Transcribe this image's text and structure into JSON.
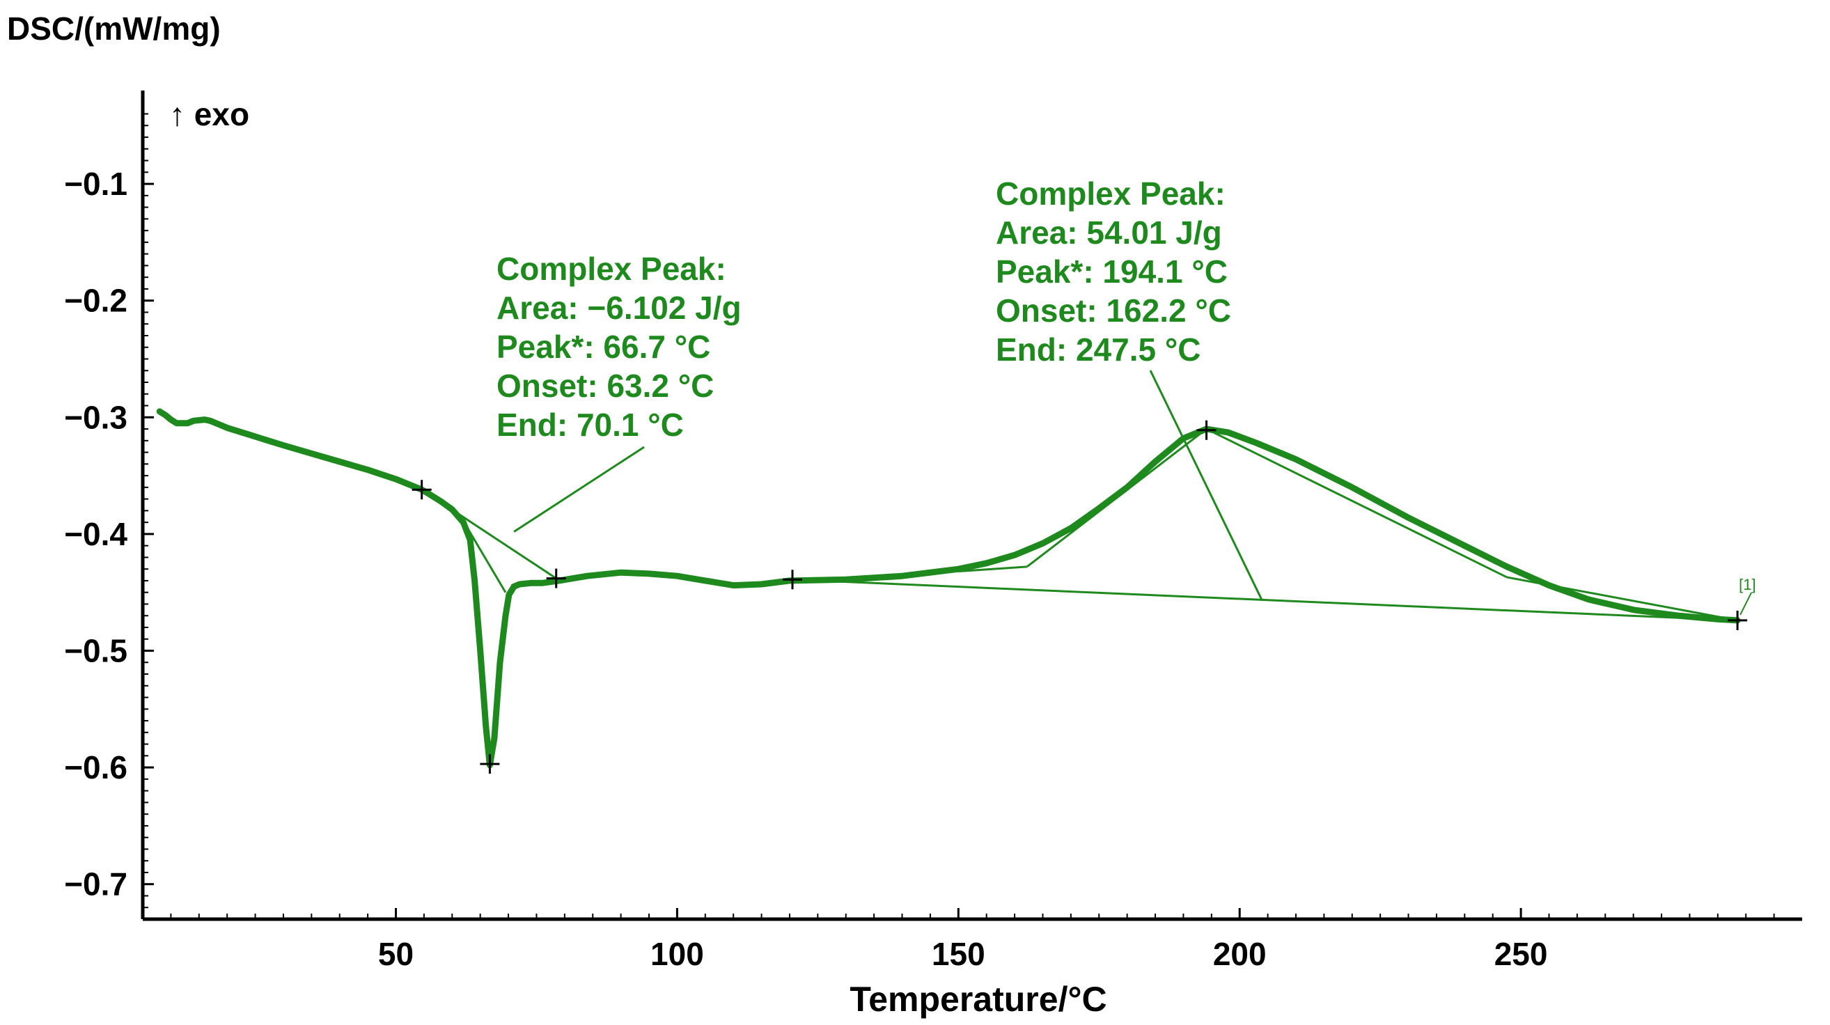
{
  "chart_data": {
    "type": "line",
    "title": "",
    "ylabel": "DSC/(mW/mg)",
    "xlabel": "Temperature/°C",
    "exo_label": "↑ exo",
    "xlim": [
      5,
      300
    ],
    "ylim": [
      -0.73,
      -0.02
    ],
    "xticks": [
      50,
      100,
      150,
      200,
      250
    ],
    "yticks": [
      -0.1,
      -0.2,
      -0.3,
      -0.4,
      -0.5,
      -0.6,
      -0.7
    ],
    "ytick_labels": [
      "−0.1",
      "−0.2",
      "−0.3",
      "−0.4",
      "−0.5",
      "−0.6",
      "−0.7"
    ],
    "colors": {
      "curve": "#1e8a1e",
      "annotation": "#1e8a1e",
      "axis": "#000000",
      "marker": "#000000"
    },
    "series": [
      {
        "name": "DSC [1]",
        "x": [
          8,
          9,
          10,
          11,
          13,
          14,
          16,
          17,
          19,
          20,
          22,
          24,
          26,
          30,
          35,
          40,
          45,
          50,
          54.6,
          56,
          58,
          60,
          62,
          63.2,
          64,
          65,
          66,
          66.7,
          67.5,
          68.5,
          69.5,
          70.1,
          71,
          72,
          74,
          76,
          79,
          84,
          90,
          95,
          100,
          105,
          110,
          115,
          120,
          130,
          140,
          150,
          155,
          160,
          165,
          170,
          175,
          180,
          185,
          190,
          194.1,
          198,
          203,
          210,
          220,
          230,
          240,
          247.5,
          255,
          262,
          270,
          278,
          285,
          288.5
        ],
        "y": [
          -0.295,
          -0.298,
          -0.302,
          -0.305,
          -0.305,
          -0.303,
          -0.302,
          -0.303,
          -0.307,
          -0.309,
          -0.312,
          -0.315,
          -0.318,
          -0.324,
          -0.331,
          -0.338,
          -0.345,
          -0.353,
          -0.362,
          -0.366,
          -0.372,
          -0.379,
          -0.39,
          -0.405,
          -0.44,
          -0.5,
          -0.565,
          -0.598,
          -0.575,
          -0.51,
          -0.47,
          -0.452,
          -0.445,
          -0.443,
          -0.442,
          -0.442,
          -0.44,
          -0.436,
          -0.433,
          -0.434,
          -0.436,
          -0.44,
          -0.444,
          -0.443,
          -0.44,
          -0.439,
          -0.436,
          -0.43,
          -0.425,
          -0.418,
          -0.408,
          -0.395,
          -0.378,
          -0.36,
          -0.338,
          -0.318,
          -0.31,
          -0.313,
          -0.322,
          -0.336,
          -0.36,
          -0.386,
          -0.41,
          -0.428,
          -0.444,
          -0.456,
          -0.465,
          -0.47,
          -0.473,
          -0.474
        ]
      }
    ],
    "baselines": [
      {
        "x": [
          54.6,
          78.5
        ],
        "y": [
          -0.362,
          -0.438
        ]
      },
      {
        "x": [
          120.5,
          288.5
        ],
        "y": [
          -0.439,
          -0.474
        ]
      },
      {
        "x": [
          62.5,
          69.5
        ],
        "y": [
          -0.393,
          -0.45
        ]
      },
      {
        "x": [
          70.5,
          80
        ],
        "y": [
          -0.444,
          -0.441
        ]
      },
      {
        "x": [
          150,
          162.2
        ],
        "y": [
          -0.432,
          -0.428
        ]
      },
      {
        "x": [
          162.2,
          194.1
        ],
        "y": [
          -0.428,
          -0.31
        ]
      },
      {
        "x": [
          194.1,
          247.5
        ],
        "y": [
          -0.31,
          -0.437
        ]
      },
      {
        "x": [
          247.5,
          288.5
        ],
        "y": [
          -0.437,
          -0.474
        ]
      }
    ],
    "markers": [
      {
        "x": 54.6,
        "y": -0.362
      },
      {
        "x": 66.7,
        "y": -0.597
      },
      {
        "x": 78.5,
        "y": -0.438
      },
      {
        "x": 120.5,
        "y": -0.439
      },
      {
        "x": 194.1,
        "y": -0.311
      },
      {
        "x": 288.5,
        "y": -0.474
      }
    ],
    "series_marker_label": "[1]",
    "annotations": [
      {
        "lines": [
          "Complex Peak:",
          "Area:   −6.102 J/g",
          "Peak*: 66.7 °C",
          "Onset: 63.2 °C",
          "End:    70.1 °C"
        ],
        "anchor": {
          "x": 71,
          "y": -0.398
        }
      },
      {
        "lines": [
          "Complex Peak:",
          "Area:     54.01 J/g",
          "Peak*: 194.1 °C",
          "Onset: 162.2 °C",
          "End:    247.5 °C"
        ],
        "anchor": {
          "x": 204,
          "y": -0.457
        }
      }
    ]
  }
}
